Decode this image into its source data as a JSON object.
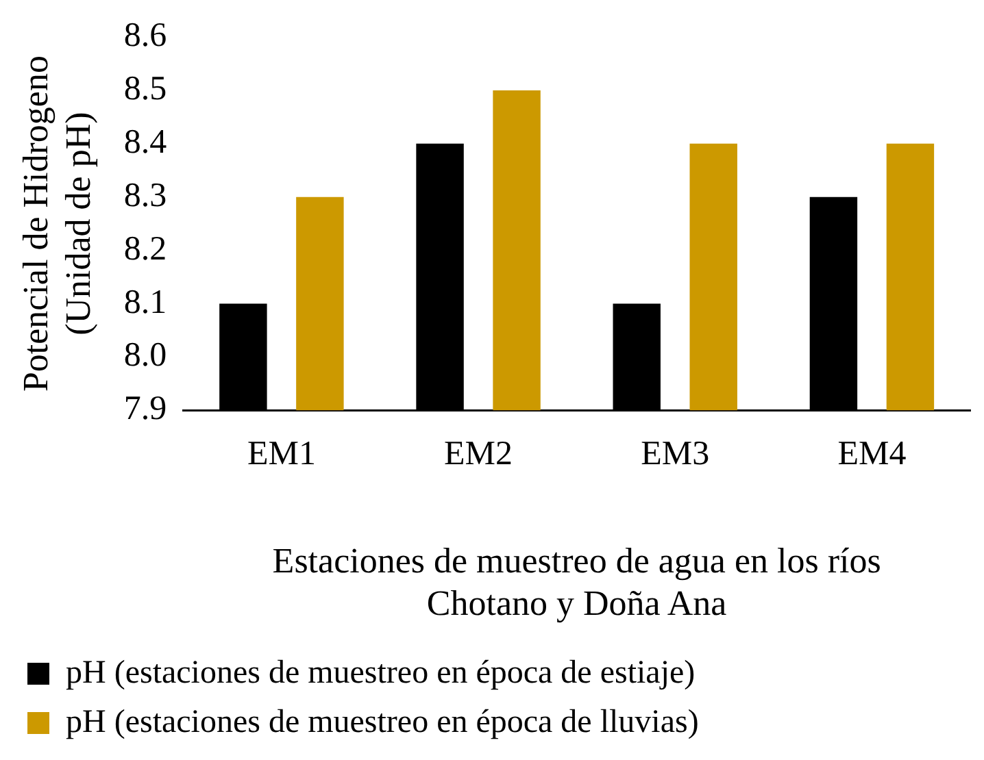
{
  "chart_data": {
    "type": "bar",
    "categories": [
      "EM1",
      "EM2",
      "EM3",
      "EM4"
    ],
    "series": [
      {
        "name": "pH (estaciones de muestreo en época de estiaje)",
        "color": "#000000",
        "values": [
          8.1,
          8.4,
          8.1,
          8.3
        ]
      },
      {
        "name": "pH (estaciones de muestreo en época de lluvias)",
        "color": "#cc9900",
        "values": [
          8.3,
          8.5,
          8.4,
          8.4
        ]
      }
    ],
    "xlabel": "Estaciones de muestreo de agua en los ríos\nChotano y Doña Ana",
    "ylabel": "Potencial de Hidrogeno\n(Unidad de pH)",
    "ylim": [
      7.9,
      8.6
    ],
    "yticks": [
      {
        "value": 7.9,
        "label": "7.9"
      },
      {
        "value": 8.0,
        "label": "8.0"
      },
      {
        "value": 8.1,
        "label": "8.1"
      },
      {
        "value": 8.2,
        "label": "8.2"
      },
      {
        "value": 8.3,
        "label": "8.3"
      },
      {
        "value": 8.4,
        "label": "8.4"
      },
      {
        "value": 8.5,
        "label": "8.5"
      },
      {
        "value": 8.6,
        "label": "8.6"
      }
    ],
    "grid": false,
    "legend": "bottom"
  }
}
